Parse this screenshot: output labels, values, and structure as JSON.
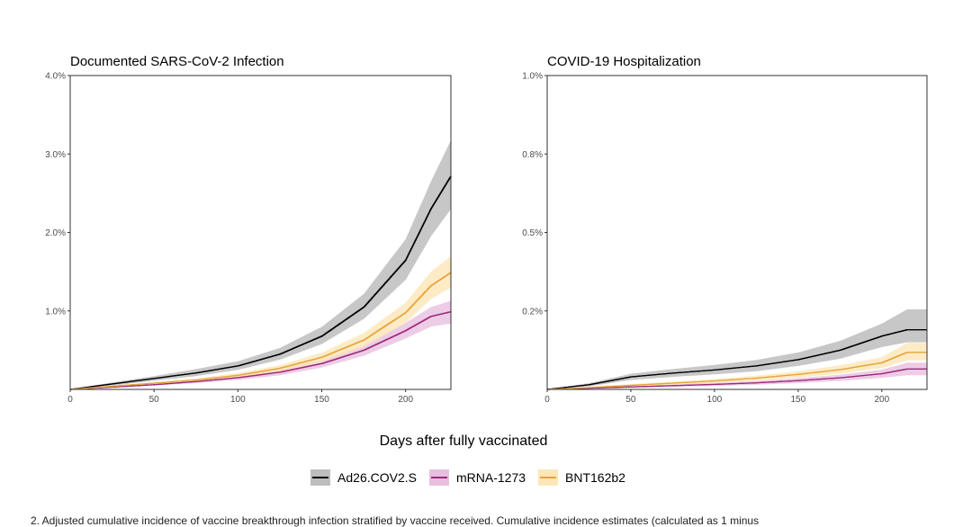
{
  "figure": {
    "xlabel": "Days after fully vaccinated",
    "caption": "2. Adjusted cumulative incidence of vaccine breakthrough infection stratified by vaccine received. Cumulative incidence estimates (calculated as 1 minus"
  },
  "legend": [
    {
      "label": "Ad26.COV2.S",
      "line": "#000000",
      "fill": "#bdbdbd"
    },
    {
      "label": "mRNA-1273",
      "line": "#9c2a7a",
      "fill": "#e9bfe0"
    },
    {
      "label": "BNT162b2",
      "line": "#e6a43a",
      "fill": "#fde6b8"
    }
  ],
  "chart_data": [
    {
      "type": "line",
      "title": "Documented SARS-CoV-2 Infection",
      "xlabel": "Days after fully vaccinated",
      "ylabel": "",
      "xlim": [
        0,
        227
      ],
      "ylim": [
        0,
        4.0
      ],
      "xticks": [
        0,
        50,
        100,
        150,
        200
      ],
      "yticks": [
        1.0,
        2.0,
        3.0,
        4.0
      ],
      "ytick_labels": [
        "1.0%",
        "2.0%",
        "3.0%",
        "4.0%"
      ],
      "x": [
        0,
        25,
        50,
        75,
        100,
        125,
        150,
        175,
        200,
        215,
        227
      ],
      "series": [
        {
          "name": "Ad26.COV2.S",
          "values": [
            0,
            0.07,
            0.14,
            0.21,
            0.3,
            0.45,
            0.68,
            1.05,
            1.65,
            2.3,
            2.72
          ],
          "lower": [
            0,
            0.05,
            0.11,
            0.17,
            0.25,
            0.38,
            0.58,
            0.9,
            1.4,
            1.95,
            2.3
          ],
          "upper": [
            0,
            0.09,
            0.17,
            0.26,
            0.36,
            0.53,
            0.8,
            1.22,
            1.92,
            2.65,
            3.18
          ]
        },
        {
          "name": "mRNA-1273",
          "values": [
            0,
            0.03,
            0.06,
            0.1,
            0.15,
            0.22,
            0.33,
            0.5,
            0.75,
            0.93,
            0.99
          ],
          "lower": [
            0,
            0.02,
            0.05,
            0.08,
            0.12,
            0.18,
            0.28,
            0.43,
            0.65,
            0.8,
            0.84
          ],
          "upper": [
            0,
            0.04,
            0.07,
            0.12,
            0.18,
            0.26,
            0.38,
            0.57,
            0.85,
            1.05,
            1.13
          ]
        },
        {
          "name": "BNT162b2",
          "values": [
            0,
            0.04,
            0.08,
            0.12,
            0.18,
            0.27,
            0.41,
            0.63,
            0.98,
            1.32,
            1.49
          ],
          "lower": [
            0,
            0.03,
            0.07,
            0.1,
            0.15,
            0.23,
            0.35,
            0.54,
            0.85,
            1.15,
            1.3
          ],
          "upper": [
            0,
            0.05,
            0.09,
            0.14,
            0.21,
            0.31,
            0.47,
            0.72,
            1.11,
            1.5,
            1.7
          ]
        }
      ]
    },
    {
      "type": "line",
      "title": "COVID-19 Hospitalization",
      "xlabel": "Days after fully vaccinated",
      "ylabel": "",
      "xlim": [
        0,
        227
      ],
      "ylim": [
        0,
        1.0
      ],
      "xticks": [
        0,
        50,
        100,
        150,
        200
      ],
      "yticks": [
        0.25,
        0.5,
        0.75,
        1.0
      ],
      "ytick_labels": [
        "0.2%",
        "0.5%",
        "0.8%",
        "1.0%"
      ],
      "x": [
        0,
        25,
        50,
        75,
        100,
        125,
        150,
        175,
        200,
        215,
        227
      ],
      "series": [
        {
          "name": "Ad26.COV2.S",
          "values": [
            0,
            0.015,
            0.04,
            0.052,
            0.062,
            0.075,
            0.095,
            0.125,
            0.17,
            0.19,
            0.19
          ],
          "lower": [
            0,
            0.01,
            0.03,
            0.04,
            0.048,
            0.058,
            0.075,
            0.098,
            0.135,
            0.15,
            0.15
          ],
          "upper": [
            0,
            0.02,
            0.05,
            0.065,
            0.078,
            0.094,
            0.118,
            0.155,
            0.21,
            0.255,
            0.255
          ]
        },
        {
          "name": "mRNA-1273",
          "values": [
            0,
            0.004,
            0.008,
            0.012,
            0.016,
            0.021,
            0.028,
            0.037,
            0.05,
            0.065,
            0.065
          ],
          "lower": [
            0,
            0.002,
            0.005,
            0.008,
            0.011,
            0.015,
            0.02,
            0.027,
            0.037,
            0.045,
            0.045
          ],
          "upper": [
            0,
            0.006,
            0.011,
            0.016,
            0.021,
            0.027,
            0.036,
            0.047,
            0.063,
            0.085,
            0.085
          ]
        },
        {
          "name": "BNT162b2",
          "values": [
            0,
            0.006,
            0.013,
            0.02,
            0.027,
            0.036,
            0.048,
            0.063,
            0.085,
            0.118,
            0.118
          ],
          "lower": [
            0,
            0.004,
            0.009,
            0.015,
            0.021,
            0.028,
            0.038,
            0.05,
            0.068,
            0.092,
            0.092
          ],
          "upper": [
            0,
            0.008,
            0.017,
            0.025,
            0.033,
            0.044,
            0.058,
            0.077,
            0.103,
            0.148,
            0.148
          ]
        }
      ]
    }
  ]
}
